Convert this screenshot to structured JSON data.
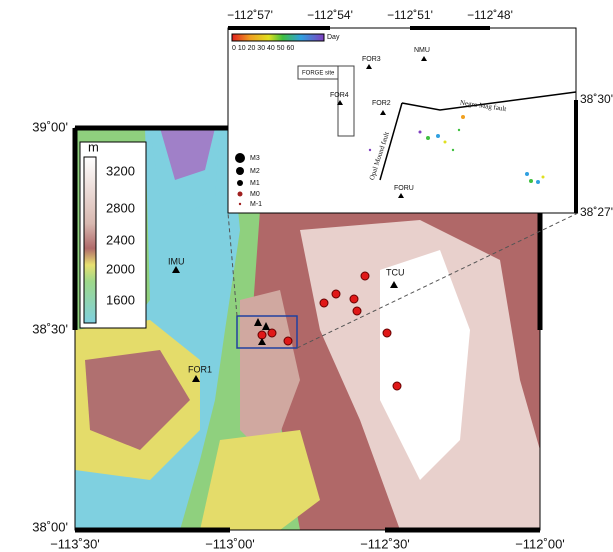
{
  "main_map": {
    "lat_labels": [
      "39˚00'",
      "38˚30'",
      "38˚00'"
    ],
    "lon_labels": [
      "−113˚30'",
      "−113˚00'",
      "−112˚30'",
      "−112˚00'"
    ],
    "elevation_bar": {
      "unit": "m",
      "labels": [
        "3200",
        "2800",
        "2400",
        "2000",
        "1600"
      ]
    },
    "stations": [
      "IMU",
      "FOR1",
      "TCU"
    ]
  },
  "inset": {
    "lon_labels": [
      "−112˚57'",
      "−112˚54'",
      "−112˚51'",
      "−112˚48'"
    ],
    "lat_labels": [
      "38˚30'",
      "38˚27'"
    ],
    "day_bar": {
      "title": "Day",
      "labels": "0  10 20 30 40 50 60"
    },
    "magnitude_legend": [
      "M3",
      "M2",
      "M1",
      "M0",
      "M-1"
    ],
    "stations": [
      "FOR3",
      "NMU",
      "FOR4",
      "FOR2",
      "FORU"
    ],
    "site": "FORGE site",
    "faults": [
      "Negro Mag fault",
      "Opal Mound fault"
    ]
  }
}
